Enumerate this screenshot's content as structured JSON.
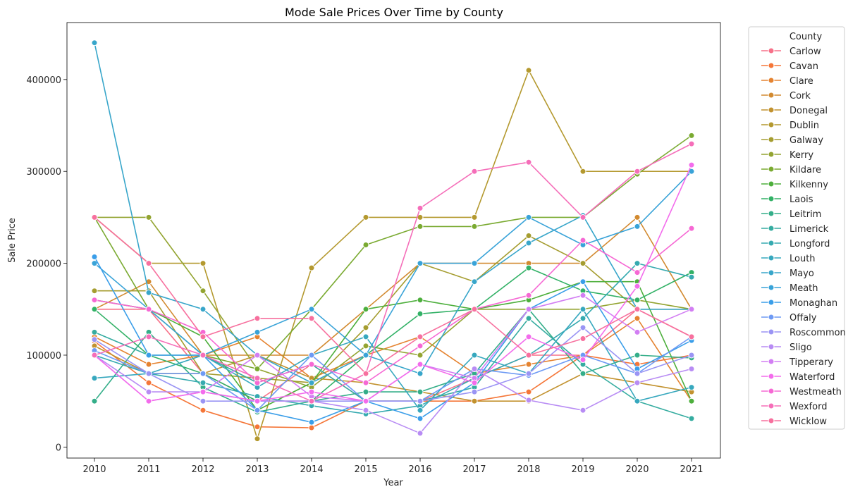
{
  "chart_data": {
    "type": "line",
    "title": "Mode Sale Prices Over Time by County",
    "xlabel": "Year",
    "ylabel": "Sale Price",
    "x": [
      2010,
      2011,
      2012,
      2013,
      2014,
      2015,
      2016,
      2017,
      2018,
      2019,
      2020,
      2021
    ],
    "ylim": [
      -12000,
      462000
    ],
    "yticks": [
      0,
      100000,
      200000,
      300000,
      400000
    ],
    "grid": false,
    "legend": {
      "title": "County",
      "placement": "outside-right"
    },
    "series": [
      {
        "name": "Carlow",
        "color": "#f77189",
        "values": [
          150000,
          150000,
          80000,
          50000,
          90000,
          50000,
          50000,
          75000,
          100000,
          100000,
          150000,
          120000
        ]
      },
      {
        "name": "Cavan",
        "color": "#f57638",
        "values": [
          115000,
          70000,
          40000,
          22000,
          21000,
          50000,
          50000,
          50000,
          60000,
          100000,
          90000,
          100000
        ]
      },
      {
        "name": "Clare",
        "color": "#e58330",
        "values": [
          120000,
          90000,
          100000,
          120000,
          75000,
          100000,
          120000,
          80000,
          90000,
          100000,
          140000,
          50000
        ]
      },
      {
        "name": "Cork",
        "color": "#d28a30",
        "values": [
          150000,
          180000,
          100000,
          100000,
          100000,
          150000,
          200000,
          200000,
          200000,
          200000,
          250000,
          150000
        ]
      },
      {
        "name": "Donegal",
        "color": "#c2922f",
        "values": [
          110000,
          80000,
          80000,
          100000,
          75000,
          70000,
          60000,
          50000,
          50000,
          80000,
          70000,
          60000
        ]
      },
      {
        "name": "Dublin",
        "color": "#b4992f",
        "values": [
          250000,
          200000,
          200000,
          9000,
          195000,
          250000,
          250000,
          250000,
          410000,
          300000,
          300000,
          300000
        ]
      },
      {
        "name": "Galway",
        "color": "#a59d30",
        "values": [
          170000,
          170000,
          80000,
          75000,
          70000,
          130000,
          200000,
          180000,
          230000,
          200000,
          150000,
          150000
        ]
      },
      {
        "name": "Kerry",
        "color": "#93a431",
        "values": [
          250000,
          250000,
          170000,
          85000,
          65000,
          110000,
          100000,
          150000,
          150000,
          150000,
          160000,
          150000
        ]
      },
      {
        "name": "Kildare",
        "color": "#7aaa31",
        "values": [
          250000,
          150000,
          100000,
          85000,
          150000,
          220000,
          240000,
          240000,
          250000,
          250000,
          297000,
          339000
        ]
      },
      {
        "name": "Kilkenny",
        "color": "#4daf3c",
        "values": [
          160000,
          150000,
          120000,
          40000,
          70000,
          150000,
          160000,
          150000,
          160000,
          180000,
          180000,
          50000
        ]
      },
      {
        "name": "Laois",
        "color": "#32b166",
        "values": [
          150000,
          100000,
          80000,
          50000,
          50000,
          100000,
          145000,
          150000,
          195000,
          170000,
          160000,
          190000
        ]
      },
      {
        "name": "Leitrim",
        "color": "#34ae89",
        "values": [
          50000,
          125000,
          65000,
          38000,
          50000,
          60000,
          60000,
          80000,
          150000,
          80000,
          100000,
          97000
        ]
      },
      {
        "name": "Limerick",
        "color": "#35aca0",
        "values": [
          125000,
          100000,
          100000,
          70000,
          90000,
          50000,
          50000,
          65000,
          140000,
          90000,
          50000,
          31000
        ]
      },
      {
        "name": "Longford",
        "color": "#36aab0",
        "values": [
          100000,
          80000,
          70000,
          55000,
          45000,
          36000,
          45000,
          75000,
          100000,
          140000,
          200000,
          185000
        ]
      },
      {
        "name": "Louth",
        "color": "#37a8be",
        "values": [
          75000,
          80000,
          100000,
          65000,
          100000,
          120000,
          40000,
          100000,
          80000,
          150000,
          50000,
          65000
        ]
      },
      {
        "name": "Mayo",
        "color": "#38a6ca",
        "values": [
          440000,
          168000,
          150000,
          100000,
          70000,
          100000,
          80000,
          180000,
          222000,
          252000,
          150000,
          150000
        ]
      },
      {
        "name": "Meath",
        "color": "#39a3d8",
        "values": [
          200000,
          150000,
          100000,
          125000,
          150000,
          100000,
          200000,
          200000,
          250000,
          220000,
          240000,
          300000
        ]
      },
      {
        "name": "Monaghan",
        "color": "#3a9ee9",
        "values": [
          207000,
          100000,
          100000,
          40000,
          27000,
          50000,
          31000,
          70000,
          150000,
          180000,
          85000,
          116000
        ]
      },
      {
        "name": "Offaly",
        "color": "#6e9af4",
        "values": [
          105000,
          80000,
          80000,
          40000,
          100000,
          50000,
          50000,
          85000,
          78000,
          100000,
          80000,
          120000
        ]
      },
      {
        "name": "Roscommon",
        "color": "#9a94f4",
        "values": [
          117000,
          80000,
          50000,
          50000,
          50000,
          50000,
          50000,
          60000,
          80000,
          130000,
          80000,
          100000
        ]
      },
      {
        "name": "Sligo",
        "color": "#b88cf4",
        "values": [
          100000,
          60000,
          60000,
          50000,
          50000,
          40000,
          15000,
          85000,
          51000,
          40000,
          70000,
          85000
        ]
      },
      {
        "name": "Tipperary",
        "color": "#d27ef3",
        "values": [
          100000,
          50000,
          60000,
          100000,
          55000,
          50000,
          90000,
          75000,
          150000,
          165000,
          125000,
          150000
        ]
      },
      {
        "name": "Waterford",
        "color": "#f36cec",
        "values": [
          100000,
          50000,
          60000,
          50000,
          60000,
          50000,
          90000,
          70000,
          120000,
          95000,
          175000,
          307000
        ]
      },
      {
        "name": "Westmeath",
        "color": "#f668d4",
        "values": [
          160000,
          150000,
          125000,
          70000,
          90000,
          70000,
          110000,
          150000,
          165000,
          225000,
          190000,
          238000
        ]
      },
      {
        "name": "Wexford",
        "color": "#f56eb9",
        "values": [
          100000,
          120000,
          100000,
          75000,
          50000,
          80000,
          260000,
          300000,
          310000,
          250000,
          300000,
          330000
        ]
      },
      {
        "name": "Wicklow",
        "color": "#f7709e",
        "values": [
          250000,
          200000,
          120000,
          140000,
          140000,
          80000,
          120000,
          150000,
          100000,
          118000,
          150000,
          120000
        ]
      }
    ]
  }
}
